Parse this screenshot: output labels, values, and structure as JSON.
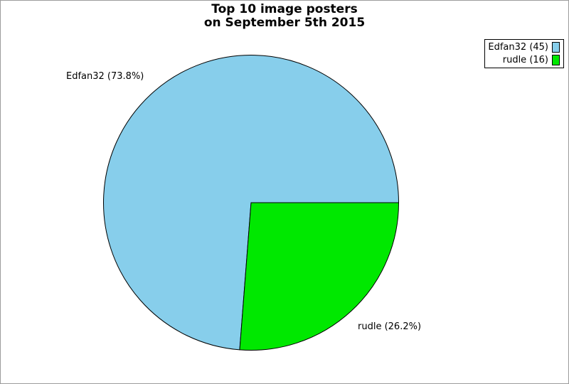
{
  "title": {
    "line1": "Top 10 image posters",
    "line2": "on September 5th 2015"
  },
  "chart_data": {
    "type": "pie",
    "title": "Top 10 image posters",
    "subtitle": "on September 5th 2015",
    "total": 61,
    "series": [
      {
        "name": "Edfan32",
        "value": 45,
        "percent": 73.8,
        "color": "#87ceeb",
        "callout": "Edfan32 (73.8%)",
        "legend": "Edfan32 (45)"
      },
      {
        "name": "rudle",
        "value": 16,
        "percent": 26.2,
        "color": "#00e800",
        "callout": "rudle (26.2%)",
        "legend": "rudle (16)"
      }
    ],
    "start_angle_deg": 0,
    "sweep_direction": "counterclockwise",
    "outline_color": "#000000",
    "legend_position": "top-right",
    "background": "#ffffff",
    "frame_color": "#9c9c9c"
  }
}
